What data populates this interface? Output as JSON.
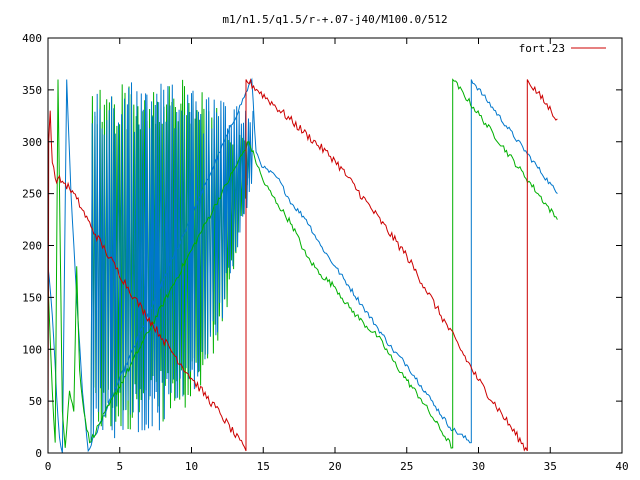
{
  "chart_data": {
    "type": "line",
    "title": "m1/n1.5/q1.5/r-+.07-j40/M100.0/512",
    "xlabel": "",
    "ylabel": "",
    "xlim": [
      0,
      40
    ],
    "ylim": [
      0,
      400
    ],
    "xticks": [
      0,
      5,
      10,
      15,
      20,
      25,
      30,
      35,
      40
    ],
    "yticks": [
      0,
      50,
      100,
      150,
      200,
      250,
      300,
      350,
      400
    ],
    "grid": false,
    "legend_position": "top-right",
    "legend": [
      {
        "label": "fort.23",
        "color": "#cc0000"
      }
    ],
    "series": [
      {
        "name": "fort.23",
        "color": "#cc0000",
        "style": "noisy",
        "amp": 8,
        "points": [
          [
            0.0,
            0
          ],
          [
            0.05,
            300
          ],
          [
            0.15,
            330
          ],
          [
            0.3,
            280
          ],
          [
            0.5,
            265
          ],
          [
            1.0,
            262
          ],
          [
            1.5,
            255
          ],
          [
            2.0,
            245
          ],
          [
            3.0,
            218
          ],
          [
            4.0,
            195
          ],
          [
            6.0,
            150
          ],
          [
            8.0,
            110
          ],
          [
            10.0,
            72
          ],
          [
            12.0,
            38
          ],
          [
            13.8,
            2
          ],
          [
            13.8,
            360
          ],
          [
            20.0,
            282
          ],
          [
            25.0,
            190
          ],
          [
            30.0,
            70
          ],
          [
            33.4,
            2
          ],
          [
            33.4,
            360
          ],
          [
            35.5,
            322
          ]
        ]
      },
      {
        "color": "#0077cc",
        "style": "noisy",
        "amp": 5,
        "points": [
          [
            0.0,
            180
          ],
          [
            0.2,
            150
          ],
          [
            0.4,
            110
          ],
          [
            0.6,
            55
          ],
          [
            0.8,
            15
          ],
          [
            1.0,
            0
          ],
          [
            1.3,
            360
          ],
          [
            1.6,
            250
          ],
          [
            2.0,
            150
          ],
          [
            2.4,
            60
          ],
          [
            2.8,
            2
          ],
          [
            14.2,
            360
          ],
          [
            14.5,
            290
          ],
          [
            15.0,
            275
          ],
          [
            16.0,
            265
          ],
          [
            17.0,
            240
          ],
          [
            18.0,
            225
          ],
          [
            19.0,
            200
          ],
          [
            20.0,
            180
          ],
          [
            21.0,
            160
          ],
          [
            22.0,
            140
          ],
          [
            23.0,
            120
          ],
          [
            24.0,
            100
          ],
          [
            25.0,
            85
          ],
          [
            26.0,
            65
          ],
          [
            27.0,
            45
          ],
          [
            28.0,
            25
          ],
          [
            29.5,
            10
          ],
          [
            29.5,
            360
          ],
          [
            35.5,
            250
          ]
        ]
      },
      {
        "color": "#00b000",
        "style": "noisy",
        "amp": 6,
        "points": [
          [
            0.0,
            170
          ],
          [
            0.1,
            130
          ],
          [
            0.3,
            60
          ],
          [
            0.5,
            10
          ],
          [
            0.7,
            360
          ],
          [
            0.9,
            150
          ],
          [
            1.0,
            40
          ],
          [
            1.2,
            5
          ],
          [
            1.5,
            60
          ],
          [
            1.8,
            40
          ],
          [
            2.0,
            180
          ],
          [
            2.2,
            80
          ],
          [
            2.5,
            40
          ],
          [
            2.9,
            10
          ],
          [
            14.0,
            300
          ],
          [
            15.0,
            262
          ],
          [
            16.0,
            240
          ],
          [
            17.0,
            220
          ],
          [
            18.0,
            190
          ],
          [
            19.0,
            172
          ],
          [
            20.0,
            160
          ],
          [
            21.0,
            140
          ],
          [
            22.0,
            125
          ],
          [
            23.0,
            112
          ],
          [
            24.0,
            90
          ],
          [
            25.0,
            70
          ],
          [
            26.0,
            52
          ],
          [
            27.0,
            30
          ],
          [
            28.2,
            5
          ],
          [
            28.2,
            360
          ],
          [
            35.5,
            225
          ]
        ]
      },
      {
        "color": "#00b000",
        "style": "oscillation",
        "x_range": [
          3.0,
          14.0
        ],
        "envelope": [
          [
            3.0,
            10,
            360
          ],
          [
            5.0,
            20,
            360
          ],
          [
            8.0,
            30,
            360
          ],
          [
            10.0,
            40,
            360
          ],
          [
            12.0,
            100,
            330
          ],
          [
            14.0,
            260,
            300
          ]
        ]
      },
      {
        "color": "#0077cc",
        "style": "oscillation",
        "x_range": [
          3.0,
          14.2
        ],
        "envelope": [
          [
            3.0,
            10,
            350
          ],
          [
            5.0,
            15,
            360
          ],
          [
            8.0,
            20,
            360
          ],
          [
            10.0,
            40,
            350
          ],
          [
            12.0,
            120,
            340
          ],
          [
            14.2,
            250,
            330
          ]
        ]
      }
    ]
  }
}
